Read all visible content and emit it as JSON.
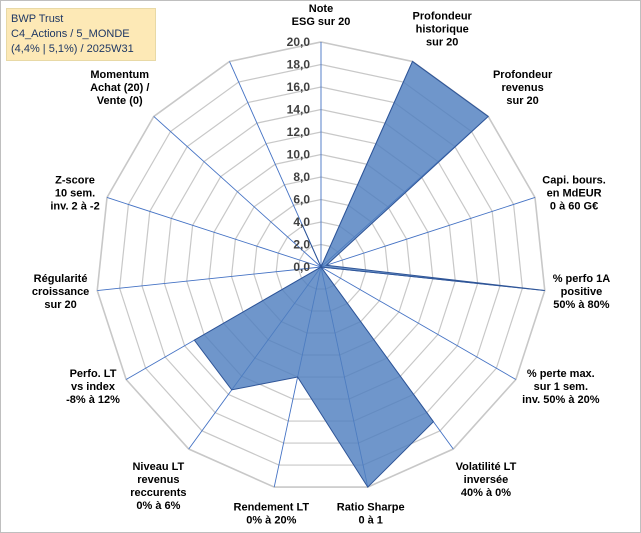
{
  "info": {
    "line1": "BWP Trust",
    "line2": "C4_Actions / 5_MONDE",
    "line3": "(4,4% | 5,1%) / 2025W31"
  },
  "colors": {
    "fill": "#4f7fbf",
    "stroke": "#2f5597",
    "grid": "#c8c8c8",
    "spoke": "#4472c4"
  },
  "chart_data": {
    "type": "radar",
    "rmax": 20,
    "ticks": [
      "0,0",
      "2,0",
      "4,0",
      "6,0",
      "8,0",
      "10,0",
      "12,0",
      "14,0",
      "16,0",
      "18,0",
      "20,0"
    ],
    "axes": [
      {
        "label": [
          "Note",
          "ESG sur 20"
        ],
        "value": 0
      },
      {
        "label": [
          "Profondeur",
          "historique",
          "sur 20"
        ],
        "value": 20
      },
      {
        "label": [
          "Profondeur",
          "revenus",
          "sur 20"
        ],
        "value": 20
      },
      {
        "label": [
          "Capi. bours.",
          "en MdEUR",
          "0 à 60 G€"
        ],
        "value": 0.5
      },
      {
        "label": [
          "% perfo 1A",
          "positive",
          "50% à 80%"
        ],
        "value": 20
      },
      {
        "label": [
          "% perte max.",
          "sur 1 sem.",
          "inv. 50% à 20%"
        ],
        "value": 0
      },
      {
        "label": [
          "Volatilité LT",
          "inversée",
          "40% à 0%"
        ],
        "value": 17
      },
      {
        "label": [
          "Ratio Sharpe",
          "0 à 1"
        ],
        "value": 20
      },
      {
        "label": [
          "Rendement LT",
          "0% à 20%"
        ],
        "value": 10
      },
      {
        "label": [
          "Niveau LT",
          "revenus",
          "reccurents",
          "0% à 6%"
        ],
        "value": 13.5
      },
      {
        "label": [
          "Perfo. LT",
          "vs index",
          "-8% à 12%"
        ],
        "value": 13
      },
      {
        "label": [
          "Régularité",
          "croissance",
          "sur 20"
        ],
        "value": 0
      },
      {
        "label": [
          "Z-score",
          "10 sem.",
          "inv. 2 à -2"
        ],
        "value": 0
      },
      {
        "label": [
          "Momentum",
          "Achat (20) /",
          "Vente (0)"
        ],
        "value": 0
      },
      {
        "label": [
          "",
          ""
        ],
        "value": 4.2
      }
    ]
  }
}
